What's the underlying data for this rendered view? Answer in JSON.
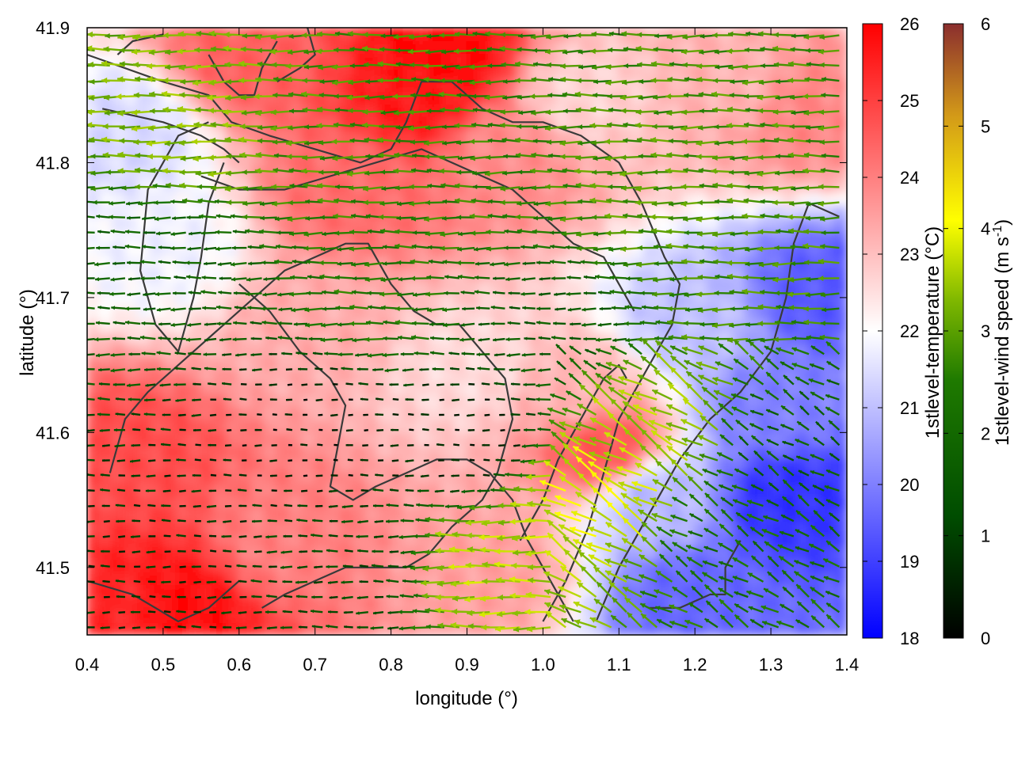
{
  "chart_data": {
    "type": "heatmap",
    "xlabel": "longitude (°)",
    "ylabel": "latitude (°)",
    "xlim": [
      0.4,
      1.4
    ],
    "ylim": [
      41.45,
      41.9
    ],
    "xticks": [
      0.4,
      0.5,
      0.6,
      0.7,
      0.8,
      0.9,
      1.0,
      1.1,
      1.2,
      1.3,
      1.4
    ],
    "xtick_labels": [
      "0.4",
      "0.5",
      "0.6",
      "0.7",
      "0.8",
      "0.9",
      "1.0",
      "1.1",
      "1.2",
      "1.3",
      "1.4"
    ],
    "yticks": [
      41.5,
      41.6,
      41.7,
      41.8,
      41.9
    ],
    "ytick_labels": [
      "41.5",
      "41.6",
      "41.7",
      "41.8",
      "41.9"
    ],
    "layers": {
      "temperature": {
        "label": "1stlevel-temperature (°C)",
        "range": [
          18,
          26
        ],
        "ticks": [
          18,
          19,
          20,
          21,
          22,
          23,
          24,
          25,
          26
        ],
        "tick_labels": [
          "18",
          "19",
          "20",
          "21",
          "22",
          "23",
          "24",
          "25",
          "26"
        ],
        "colors": {
          "low": "#0000ff",
          "mid": "#ffffff",
          "high": "#ff0000"
        },
        "field_samples": [
          {
            "lon": 0.45,
            "lat": 41.47,
            "value": 25.4
          },
          {
            "lon": 0.52,
            "lat": 41.47,
            "value": 25.8
          },
          {
            "lon": 0.45,
            "lat": 41.58,
            "value": 24.8
          },
          {
            "lon": 0.45,
            "lat": 41.82,
            "value": 21.4
          },
          {
            "lon": 0.5,
            "lat": 41.74,
            "value": 21.8
          },
          {
            "lon": 0.62,
            "lat": 41.88,
            "value": 24.5
          },
          {
            "lon": 0.87,
            "lat": 41.88,
            "value": 25.9
          },
          {
            "lon": 0.84,
            "lat": 41.85,
            "value": 25.6
          },
          {
            "lon": 0.75,
            "lat": 41.78,
            "value": 24.3
          },
          {
            "lon": 0.95,
            "lat": 41.81,
            "value": 23.8
          },
          {
            "lon": 1.05,
            "lat": 41.85,
            "value": 22.7
          },
          {
            "lon": 1.25,
            "lat": 41.86,
            "value": 23.2
          },
          {
            "lon": 1.35,
            "lat": 41.84,
            "value": 23.9
          },
          {
            "lon": 0.7,
            "lat": 41.68,
            "value": 23.3
          },
          {
            "lon": 0.9,
            "lat": 41.65,
            "value": 22.6
          },
          {
            "lon": 1.05,
            "lat": 41.63,
            "value": 23.2
          },
          {
            "lon": 1.08,
            "lat": 41.59,
            "value": 24.6
          },
          {
            "lon": 0.66,
            "lat": 41.52,
            "value": 24.0
          },
          {
            "lon": 0.93,
            "lat": 41.5,
            "value": 23.5
          },
          {
            "lon": 1.2,
            "lat": 41.68,
            "value": 21.0
          },
          {
            "lon": 1.3,
            "lat": 41.62,
            "value": 20.0
          },
          {
            "lon": 1.32,
            "lat": 41.55,
            "value": 18.8
          },
          {
            "lon": 1.37,
            "lat": 41.7,
            "value": 19.4
          },
          {
            "lon": 1.2,
            "lat": 41.48,
            "value": 19.6
          },
          {
            "lon": 1.15,
            "lat": 41.55,
            "value": 20.9
          }
        ]
      },
      "wind_speed": {
        "label": "1stlevel-wind speed (m s-1)",
        "range": [
          0,
          6
        ],
        "ticks": [
          0,
          1,
          2,
          3,
          4,
          5,
          6
        ],
        "tick_labels": [
          "0",
          "1",
          "2",
          "3",
          "4",
          "5",
          "6"
        ],
        "colors": [
          "#000000",
          "#005000",
          "#2e8b00",
          "#ffff00",
          "#d08a10",
          "#8b2e2e"
        ],
        "field_samples": [
          {
            "lon": 0.55,
            "lat": 41.83,
            "speed": 3.3
          },
          {
            "lon": 0.75,
            "lat": 41.82,
            "speed": 2.8
          },
          {
            "lon": 0.9,
            "lat": 41.78,
            "speed": 2.6
          },
          {
            "lon": 1.15,
            "lat": 41.78,
            "speed": 2.9
          },
          {
            "lon": 1.3,
            "lat": 41.74,
            "speed": 2.8
          },
          {
            "lon": 0.5,
            "lat": 41.72,
            "speed": 1.8
          },
          {
            "lon": 0.8,
            "lat": 41.7,
            "speed": 2.4
          },
          {
            "lon": 1.0,
            "lat": 41.68,
            "speed": 1.6
          },
          {
            "lon": 0.7,
            "lat": 41.6,
            "speed": 0.4
          },
          {
            "lon": 0.9,
            "lat": 41.6,
            "speed": 0.5
          },
          {
            "lon": 1.15,
            "lat": 41.6,
            "speed": 3.5
          },
          {
            "lon": 1.08,
            "lat": 41.55,
            "speed": 3.9
          },
          {
            "lon": 0.95,
            "lat": 41.5,
            "speed": 3.6
          },
          {
            "lon": 1.25,
            "lat": 41.52,
            "speed": 2.2
          },
          {
            "lon": 1.33,
            "lat": 41.58,
            "speed": 1.7
          },
          {
            "lon": 0.5,
            "lat": 41.5,
            "speed": 0.8
          },
          {
            "lon": 0.75,
            "lat": 41.5,
            "speed": 1.2
          }
        ],
        "predominant_direction": "east-to-west"
      }
    }
  }
}
